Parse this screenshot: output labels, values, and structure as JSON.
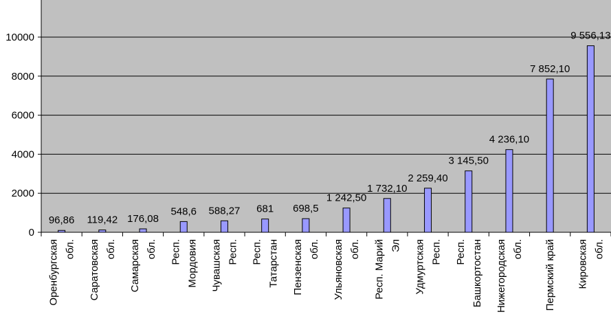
{
  "chart_data": {
    "type": "bar",
    "title": "",
    "xlabel": "",
    "ylabel": "",
    "ylim": [
      0,
      11900
    ],
    "yticks": [
      0,
      2000,
      4000,
      6000,
      8000,
      10000
    ],
    "grid": true,
    "legend": "none",
    "colors": {
      "plot_background": "#c0c0c0",
      "bar_fill": "#9999ff",
      "bar_stroke": "#000000",
      "gridline": "#000000"
    },
    "categories": [
      [
        "Оренбургская",
        "обл."
      ],
      [
        "Саратовская",
        "обл."
      ],
      [
        "Самарская",
        "обл."
      ],
      [
        "Респ.",
        "Мордовия"
      ],
      [
        "Чувашская",
        "Респ."
      ],
      [
        "Респ.",
        "Татарстан"
      ],
      [
        "Пензенская",
        "обл."
      ],
      [
        "Ульяновская",
        "обл."
      ],
      [
        "Респ. Марий",
        "Эл"
      ],
      [
        "Удмуртская",
        "Респ."
      ],
      [
        "Респ.",
        "Башкортостан"
      ],
      [
        "Нижегородская",
        "обл."
      ],
      [
        "Пермский край",
        ""
      ],
      [
        "Кировская",
        "обл."
      ]
    ],
    "values": [
      96.86,
      119.42,
      176.08,
      548.6,
      588.27,
      681,
      698.5,
      1242.5,
      1732.1,
      2259.4,
      3145.5,
      4236.1,
      7852.1,
      9556.13
    ],
    "data_labels": [
      "96,86",
      "119,42",
      "176,08",
      "548,6",
      "588,27",
      "681",
      "698,5",
      "1 242,50",
      "1 732,10",
      "2 259,40",
      "3 145,50",
      "4 236,10",
      "7 852,10",
      "9 556,13"
    ]
  }
}
